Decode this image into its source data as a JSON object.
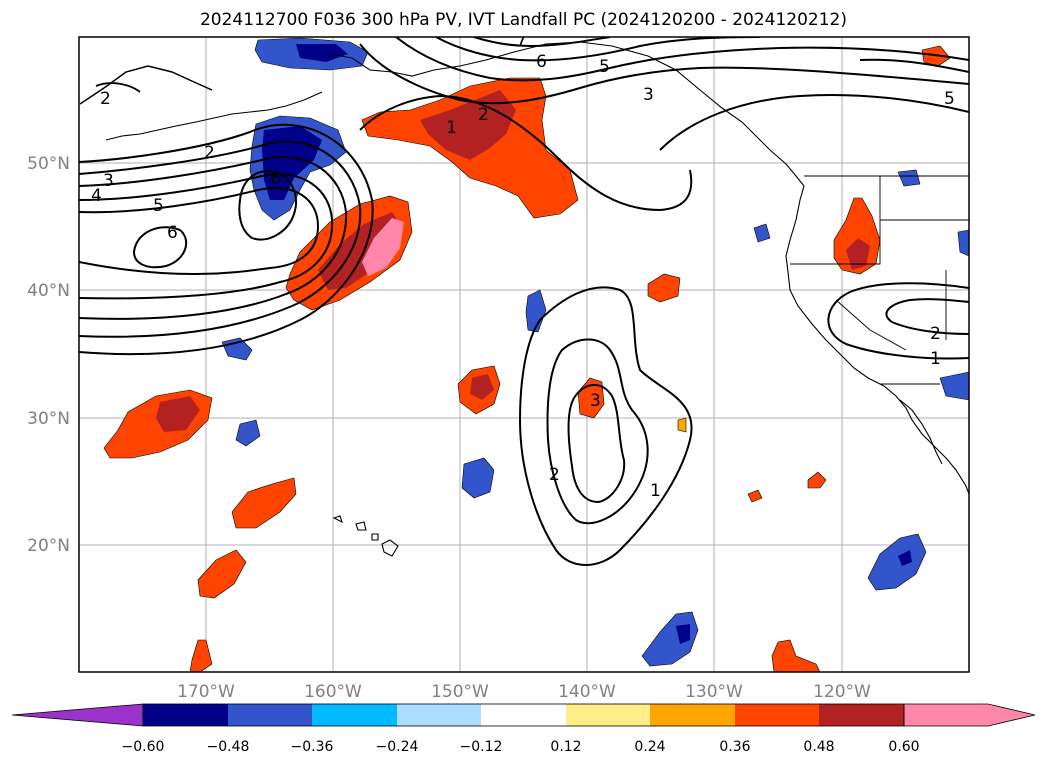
{
  "title": "2024112700 F036 300 hPa PV, IVT Landfall PC (2024120200 - 2024120212)",
  "map_axes": {
    "lon_range": [
      -180,
      -110
    ],
    "lat_range": [
      10,
      60
    ],
    "lon_ticks": [
      "170°W",
      "160°W",
      "150°W",
      "140°W",
      "130°W",
      "120°W"
    ],
    "lat_ticks": [
      "50°N",
      "40°N",
      "30°N",
      "20°N"
    ]
  },
  "colorbar": {
    "ticks": [
      "−0.60",
      "−0.48",
      "−0.36",
      "−0.24",
      "−0.12",
      "0.12",
      "0.24",
      "0.36",
      "0.48",
      "0.60"
    ],
    "colors": [
      "#9933cc",
      "#000088",
      "#3355cc",
      "#00bbff",
      "#aaddff",
      "#ffffff",
      "#ffee88",
      "#ffa500",
      "#ff4400",
      "#b22222",
      "#ff88aa",
      "#ff88aa"
    ]
  },
  "contour_labels": [
    "2",
    "2",
    "3",
    "4",
    "5",
    "6",
    "6",
    "1",
    "2",
    "6",
    "5",
    "3",
    "5",
    "7",
    "2",
    "1",
    "3",
    "2",
    "1"
  ]
}
